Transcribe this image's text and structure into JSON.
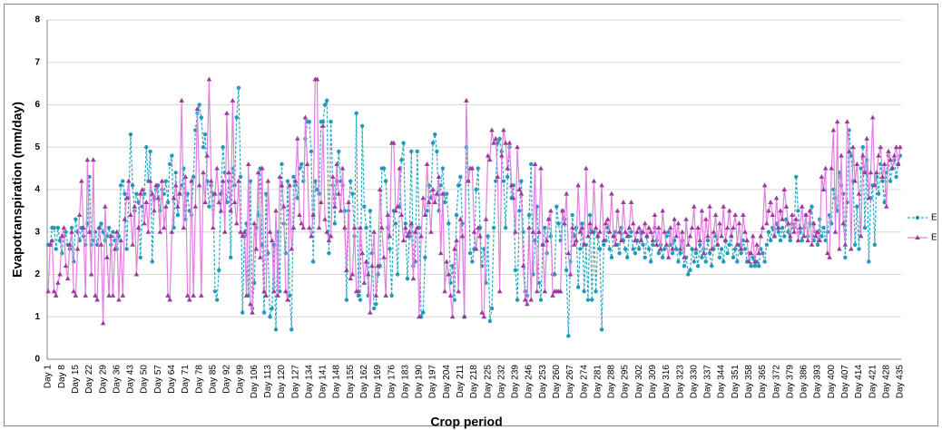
{
  "chart_data": {
    "type": "line",
    "y_label": "Evapotranspiration (mm/day)",
    "x_label": "Crop period",
    "ylim": [
      0,
      8
    ],
    "yticks": [
      0,
      1,
      2,
      3,
      4,
      5,
      6,
      7,
      8
    ],
    "grid": true,
    "legend": "right",
    "categories": [
      "Day 1",
      null,
      null,
      null,
      null,
      null,
      null,
      "Day 8",
      null,
      null,
      null,
      null,
      null,
      null,
      "Day 15",
      null,
      null,
      null,
      null,
      null,
      null,
      "Day 22",
      null,
      null,
      null,
      null,
      null,
      null,
      "Day 29",
      null,
      null,
      null,
      null,
      null,
      null,
      "Day 36",
      null,
      null,
      null,
      null,
      null,
      null,
      "Day 43",
      null,
      null,
      null,
      null,
      null,
      null,
      "Day 50",
      null,
      null,
      null,
      null,
      null,
      null,
      "Day 57",
      null,
      null,
      null,
      null,
      null,
      null,
      "Day 64",
      null,
      null,
      null,
      null,
      null,
      null,
      "Day 71",
      null,
      null,
      null,
      null,
      null,
      null,
      "Day 78",
      null,
      null,
      null,
      null,
      null,
      null,
      "Day 85",
      null,
      null,
      null,
      null,
      null,
      null,
      "Day 92",
      null,
      null,
      null,
      null,
      null,
      null,
      "Day 99",
      null,
      null,
      null,
      null,
      null,
      null,
      "Day 106",
      null,
      null,
      null,
      null,
      null,
      null,
      "Day 113",
      null,
      null,
      null,
      null,
      null,
      null,
      "Day 120",
      null,
      null,
      null,
      null,
      null,
      null,
      "Day 127",
      null,
      null,
      null,
      null,
      null,
      null,
      "Day 134",
      null,
      null,
      null,
      null,
      null,
      null,
      "Day 141",
      null,
      null,
      null,
      null,
      null,
      null,
      "Day 148",
      null,
      null,
      null,
      null,
      null,
      null,
      "Day 155",
      null,
      null,
      null,
      null,
      null,
      null,
      "Day 162",
      null,
      null,
      null,
      null,
      null,
      null,
      "Day 169",
      null,
      null,
      null,
      null,
      null,
      null,
      "Day 176",
      null,
      null,
      null,
      null,
      null,
      null,
      "Day 183",
      null,
      null,
      null,
      null,
      null,
      null,
      "Day 190",
      null,
      null,
      null,
      null,
      null,
      null,
      "Day 197",
      null,
      null,
      null,
      null,
      null,
      null,
      "Day 204",
      null,
      null,
      null,
      null,
      null,
      null,
      "Day 211",
      null,
      null,
      null,
      null,
      null,
      null,
      "Day 218",
      null,
      null,
      null,
      null,
      null,
      null,
      "Day 225",
      null,
      null,
      null,
      null,
      null,
      null,
      "Day 232",
      null,
      null,
      null,
      null,
      null,
      null,
      "Day 239",
      null,
      null,
      null,
      null,
      null,
      null,
      "Day 246",
      null,
      null,
      null,
      null,
      null,
      null,
      "Day 253",
      null,
      null,
      null,
      null,
      null,
      null,
      "Day 260",
      null,
      null,
      null,
      null,
      null,
      null,
      "Day 267",
      null,
      null,
      null,
      null,
      null,
      null,
      "Day 274",
      null,
      null,
      null,
      null,
      null,
      null,
      "Day 281",
      null,
      null,
      null,
      null,
      null,
      null,
      "Day 288",
      null,
      null,
      null,
      null,
      null,
      null,
      "Day 295",
      null,
      null,
      null,
      null,
      null,
      null,
      "Day 302",
      null,
      null,
      null,
      null,
      null,
      null,
      "Day 309",
      null,
      null,
      null,
      null,
      null,
      null,
      "Day 316",
      null,
      null,
      null,
      null,
      null,
      null,
      "Day 323",
      null,
      null,
      null,
      null,
      null,
      null,
      "Day 330",
      null,
      null,
      null,
      null,
      null,
      null,
      "Day 337",
      null,
      null,
      null,
      null,
      null,
      null,
      "Day 344",
      null,
      null,
      null,
      null,
      null,
      null,
      "Day 351",
      null,
      null,
      null,
      null,
      null,
      null,
      "Day 358",
      null,
      null,
      null,
      null,
      null,
      null,
      "Day 365",
      null,
      null,
      null,
      null,
      null,
      null,
      "Day 372",
      null,
      null,
      null,
      null,
      null,
      null,
      "Day 379",
      null,
      null,
      null,
      null,
      null,
      null,
      "Day 386",
      null,
      null,
      null,
      null,
      null,
      null,
      "Day 393",
      null,
      null,
      null,
      null,
      null,
      null,
      "Day 400",
      null,
      null,
      null,
      null,
      null,
      null,
      "Day 407",
      null,
      null,
      null,
      null,
      null,
      null,
      "Day 414",
      null,
      null,
      null,
      null,
      null,
      null,
      "Day 421",
      null,
      null,
      null,
      null,
      null,
      null,
      "Day 428",
      null,
      null,
      null,
      null,
      null,
      null,
      "Day 435"
    ],
    "series": [
      {
        "name": "E",
        "color": "#2ba6c4",
        "marker_color": "#1f9ab8",
        "marker": "circle",
        "dashed": true,
        "values": [
          2.7,
          2.7,
          3.1,
          3.1,
          2.6,
          3.1,
          2.8,
          2.5,
          2.9,
          3.0,
          2.7,
          2.6,
          3.1,
          2.3,
          3.3,
          3.0,
          2.8,
          3.1,
          2.9,
          2.7,
          3.2,
          4.3,
          2.7,
          2.8,
          3.0,
          2.7,
          3.1,
          3.2,
          3.0,
          2.8,
          2.9,
          3.1,
          2.7,
          3.0,
          2.8,
          2.6,
          2.9,
          4.1,
          4.2,
          3.9,
          2.6,
          3.8,
          5.3,
          4.1,
          3.5,
          3.9,
          3.7,
          2.4,
          3.6,
          3.9,
          5.0,
          4.2,
          4.9,
          2.3,
          3.8,
          4.0,
          4.1,
          3.5,
          4.0,
          3.9,
          4.2,
          3.7,
          4.6,
          4.8,
          3.1,
          4.4,
          3.4,
          3.9,
          4.1,
          4.5,
          3.3,
          3.9,
          3.5,
          3.4,
          4.3,
          5.4,
          5.8,
          6.0,
          5.7,
          5.0,
          5.3,
          4.2,
          3.6,
          4.1,
          3.9,
          1.6,
          1.4,
          2.1,
          3.9,
          5.0,
          4.4,
          3.7,
          4.2,
          2.4,
          4.5,
          4.1,
          5.7,
          6.4,
          4.3,
          1.1,
          2.9,
          3.2,
          1.5,
          4.2,
          1.2,
          1.8,
          3.1,
          3.4,
          4.5,
          2.7,
          1.1,
          3.9,
          2.5,
          1.0,
          1.2,
          2.7,
          0.7,
          3.0,
          1.6,
          4.6,
          3.2,
          2.5,
          4.2,
          1.5,
          0.7,
          4.3,
          4.1,
          3.8,
          4.5,
          4.6,
          4.2,
          5.2,
          5.6,
          5.6,
          4.9,
          2.3,
          4.2,
          4.0,
          3.9,
          5.6,
          5.6,
          6.0,
          6.1,
          2.5,
          5.6,
          4.1,
          3.2,
          4.2,
          4.9,
          4.2,
          4.1,
          3.5,
          1.4,
          3.5,
          4.2,
          3.9,
          2.9,
          5.8,
          1.5,
          1.4,
          5.5,
          3.6,
          3.1,
          1.5,
          3.5,
          2.5,
          1.2,
          1.3,
          2.0,
          2.2,
          4.5,
          4.5,
          4.2,
          3.1,
          2.6,
          1.5,
          3.5,
          3.2,
          2.0,
          3.6,
          4.7,
          5.1,
          3.2,
          1.9,
          2.9,
          4.9,
          2.2,
          2.3,
          4.9,
          3.1,
          1.0,
          1.1,
          2.4,
          3.5,
          4.1,
          3.8,
          5.1,
          5.3,
          4.9,
          3.5,
          4.1,
          4.5,
          3.7,
          3.9,
          3.2,
          1.8,
          2.2,
          1.4,
          3.4,
          4.1,
          4.3,
          3.2,
          1.0,
          5.0,
          4.2,
          2.5,
          2.3,
          2.6,
          4.0,
          4.5,
          3.1,
          2.2,
          2.6,
          1.8,
          2.9,
          0.9,
          1.2,
          3.1,
          4.2,
          5.1,
          5.2,
          4.9,
          4.2,
          3.1,
          4.3,
          5.0,
          3.8,
          4.1,
          2.1,
          1.4,
          3.5,
          4.2,
          3.0,
          1.6,
          1.5,
          3.4,
          4.6,
          2.0,
          2.8,
          3.6,
          1.8,
          1.4,
          2.7,
          3.1,
          2.5,
          3.3,
          2.9,
          2.0,
          2.0,
          3.6,
          3.2,
          2.8,
          3.5,
          3.3,
          2.1,
          0.55,
          2.3,
          3.4,
          2.9,
          3.1,
          1.7,
          2.6,
          3.2,
          1.6,
          2.7,
          1.4,
          3.4,
          1.4,
          3.0,
          1.6,
          2.9,
          2.6,
          0.7,
          2.7,
          2.8,
          3.1,
          2.6,
          2.4,
          2.9,
          3.0,
          2.7,
          2.5,
          3.1,
          2.8,
          2.6,
          2.4,
          2.9,
          3.0,
          2.6,
          2.5,
          2.8,
          2.6,
          3.0,
          2.7,
          2.4,
          2.9,
          2.6,
          2.3,
          2.7,
          3.1,
          2.8,
          2.5,
          2.7,
          2.4,
          2.6,
          2.9,
          3.0,
          2.7,
          2.5,
          2.8,
          2.6,
          2.3,
          2.5,
          2.8,
          2.2,
          2.4,
          2.0,
          2.1,
          2.6,
          2.3,
          2.5,
          2.2,
          2.7,
          2.4,
          2.6,
          2.3,
          2.8,
          2.5,
          2.2,
          2.6,
          2.9,
          2.7,
          2.4,
          2.6,
          2.3,
          2.8,
          2.5,
          2.7,
          2.9,
          2.4,
          2.6,
          2.3,
          2.7,
          2.5,
          2.8,
          2.6,
          2.3,
          2.5,
          2.2,
          2.4,
          2.2,
          2.3,
          2.2,
          2.6,
          2.5,
          2.3,
          2.7,
          3.0,
          2.8,
          3.1,
          2.9,
          3.2,
          3.0,
          2.8,
          3.1,
          2.9,
          3.3,
          3.0,
          2.8,
          3.2,
          3.1,
          4.3,
          3.5,
          3.0,
          2.8,
          3.1,
          3.4,
          2.9,
          3.2,
          3.6,
          2.8,
          3.0,
          2.7,
          3.3,
          2.9,
          3.1,
          2.8,
          3.0,
          3.4,
          3.2,
          4.0,
          3.8,
          3.5,
          4.4,
          4.1,
          3.9,
          2.4,
          3.7,
          5.4,
          4.8,
          4.2,
          2.7,
          3.6,
          2.6,
          4.5,
          5.0,
          3.1,
          4.7,
          2.3,
          3.8,
          4.1,
          2.7,
          4.3,
          3.9,
          4.6,
          4.2,
          3.7,
          4.4,
          4.8,
          4.2,
          4.5,
          4.7,
          4.3,
          4.6,
          4.8
        ]
      },
      {
        "name": "E",
        "color": "#e27fe0",
        "marker_color": "#9b3b9b",
        "marker": "triangle",
        "dashed": false,
        "values": [
          1.6,
          2.7,
          2.8,
          1.6,
          1.5,
          1.8,
          2.0,
          2.9,
          3.1,
          2.2,
          1.9,
          2.7,
          3.0,
          1.6,
          1.5,
          2.6,
          3.4,
          4.2,
          3.1,
          1.5,
          4.7,
          3.0,
          2.0,
          4.7,
          1.5,
          1.4,
          3.1,
          2.7,
          0.85,
          3.6,
          2.4,
          1.5,
          2.9,
          1.5,
          2.6,
          3.0,
          1.4,
          2.8,
          1.5,
          3.3,
          3.8,
          4.2,
          3.4,
          2.7,
          3.6,
          2.0,
          3.1,
          3.9,
          4.0,
          3.2,
          3.7,
          3.0,
          4.2,
          3.9,
          3.5,
          4.1,
          3.8,
          3.0,
          4.2,
          3.1,
          3.6,
          1.5,
          1.4,
          3.0,
          3.8,
          4.1,
          3.6,
          3.9,
          6.1,
          3.1,
          4.3,
          1.5,
          1.4,
          4.2,
          1.5,
          3.6,
          5.9,
          4.1,
          1.5,
          4.4,
          3.7,
          4.8,
          6.6,
          4.2,
          3.1,
          3.9,
          4.5,
          3.7,
          3.5,
          4.2,
          3.0,
          5.8,
          4.4,
          3.5,
          6.1,
          3.7,
          3.2,
          4.2,
          3.0,
          2.9,
          3.0,
          1.5,
          4.6,
          1.3,
          1.1,
          3.2,
          2.6,
          4.4,
          2.4,
          4.5,
          1.6,
          1.5,
          4.2,
          3.0,
          2.8,
          1.6,
          3.5,
          1.5,
          4.3,
          4.1,
          3.6,
          1.6,
          1.4,
          4.1,
          2.6,
          3.1,
          4.2,
          5.2,
          3.4,
          3.2,
          3.1,
          5.7,
          4.6,
          3.1,
          2.9,
          3.4,
          6.6,
          6.6,
          3.1,
          3.7,
          5.5,
          3.3,
          3.0,
          2.8,
          2.9,
          4.3,
          3.6,
          4.6,
          3.9,
          3.5,
          4.5,
          3.1,
          2.1,
          3.7,
          1.9,
          2.0,
          3.1,
          1.6,
          1.6,
          3.1,
          2.5,
          1.8,
          2.3,
          2.0,
          1.1,
          2.2,
          3.0,
          1.5,
          2.2,
          4.0,
          3.1,
          2.4,
          1.5,
          3.4,
          2.9,
          5.1,
          5.1,
          3.5,
          3.6,
          4.5,
          3.4,
          2.8,
          3.1,
          2.9,
          3.0,
          3.2,
          1.9,
          3.0,
          3.1,
          1.0,
          2.9,
          3.8,
          3.4,
          4.6,
          3.7,
          3.0,
          4.0,
          3.7,
          3.9,
          4.3,
          2.5,
          3.9,
          1.6,
          2.3,
          2.0,
          1.5,
          1.0,
          2.6,
          2.8,
          1.6,
          3.3,
          2.9,
          1.0,
          6.1,
          4.2,
          4.5,
          4.5,
          3.0,
          2.6,
          3.1,
          2.9,
          1.1,
          1.0,
          3.3,
          4.8,
          4.7,
          5.4,
          5.1,
          5.2,
          4.3,
          1.6,
          4.8,
          5.4,
          5.1,
          4.5,
          5.1,
          4.1,
          3.8,
          3.0,
          5.0,
          4.0,
          3.9,
          2.2,
          1.4,
          1.3,
          3.1,
          1.4,
          3.0,
          4.6,
          1.6,
          3.0,
          4.5,
          2.7,
          1.6,
          2.8,
          3.3,
          3.5,
          1.5,
          1.6,
          1.6,
          1.6,
          1.6,
          3.5,
          3.2,
          3.9,
          2.5,
          2.0,
          3.1,
          2.7,
          2.8,
          4.1,
          3.0,
          3.1,
          2.7,
          4.5,
          2.9,
          3.2,
          3.0,
          4.2,
          3.1,
          2.9,
          3.0,
          4.1,
          2.8,
          3.2,
          3.3,
          3.0,
          3.9,
          2.9,
          2.7,
          3.5,
          3.0,
          2.8,
          3.7,
          3.0,
          2.9,
          3.1,
          3.7,
          3.2,
          2.8,
          3.0,
          3.1,
          2.8,
          3.0,
          3.2,
          2.9,
          3.1,
          3.0,
          2.8,
          3.4,
          2.7,
          3.1,
          2.6,
          3.5,
          3.0,
          2.7,
          2.4,
          3.1,
          2.6,
          3.3,
          2.9,
          3.2,
          2.6,
          3.0,
          2.4,
          3.3,
          2.7,
          2.9,
          3.1,
          3.6,
          2.6,
          3.1,
          2.8,
          3.5,
          2.5,
          3.3,
          2.9,
          3.6,
          2.6,
          3.0,
          3.4,
          2.7,
          3.2,
          2.9,
          3.6,
          2.8,
          3.1,
          3.5,
          2.9,
          3.1,
          3.4,
          2.7,
          3.2,
          2.6,
          3.4,
          3.0,
          2.8,
          2.3,
          2.5,
          2.9,
          2.3,
          2.7,
          2.5,
          2.9,
          3.1,
          4.1,
          3.2,
          3.5,
          3.7,
          3.4,
          2.9,
          3.8,
          3.1,
          3.5,
          3.3,
          4.0,
          3.6,
          3.2,
          2.9,
          3.4,
          3.0,
          3.3,
          2.8,
          3.1,
          3.6,
          2.9,
          3.4,
          2.8,
          3.5,
          2.7,
          3.2,
          2.9,
          3.0,
          2.8,
          4.3,
          4.0,
          4.5,
          2.5,
          2.4,
          4.5,
          5.4,
          3.0,
          5.6,
          2.6,
          4.8,
          3.2,
          2.7,
          5.6,
          4.9,
          2.6,
          5.0,
          4.2,
          4.6,
          3.9,
          2.9,
          4.8,
          4.4,
          5.2,
          3.8,
          4.4,
          5.7,
          4.1,
          4.4,
          4.8,
          5.0,
          4.3,
          4.6,
          3.6,
          4.9,
          4.7,
          4.5,
          4.8,
          5.0,
          4.6,
          5.0
        ]
      }
    ]
  }
}
